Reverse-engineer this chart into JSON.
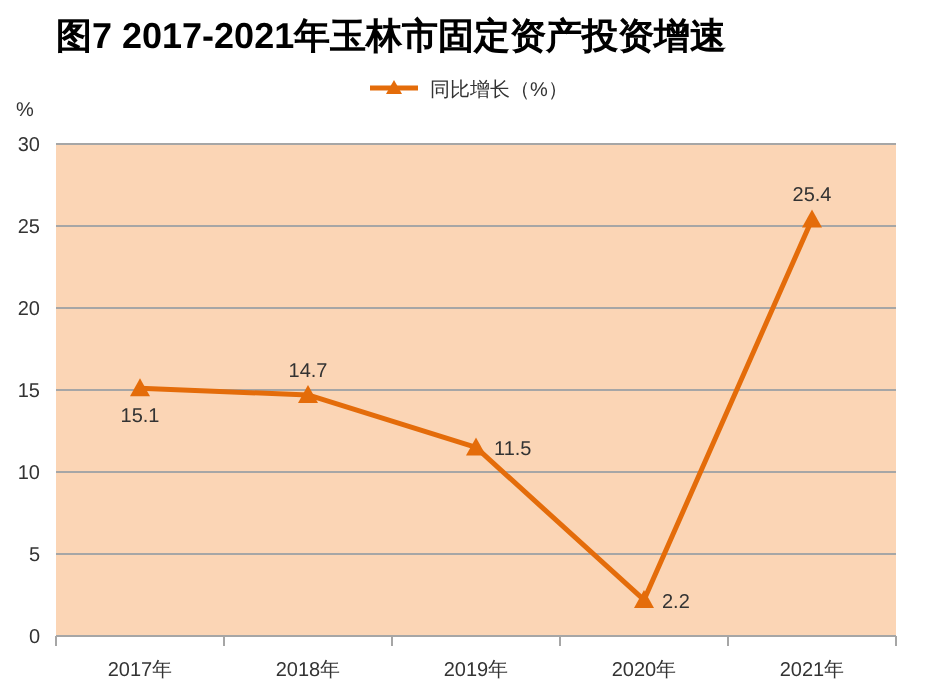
{
  "chart_data": {
    "type": "line",
    "title": "图7    2017-2021年玉林市固定资产投资增速",
    "ylabel": "%",
    "categories": [
      "2017年",
      "2018年",
      "2019年",
      "2020年",
      "2021年"
    ],
    "series": [
      {
        "name": "同比增长（%）",
        "color": "#e46c0a",
        "values": [
          15.1,
          14.7,
          11.5,
          2.2,
          25.4
        ]
      }
    ],
    "ylim": [
      0,
      30
    ],
    "yticks": [
      0,
      5,
      10,
      15,
      20,
      25,
      30
    ],
    "grid": "y",
    "legend": "top",
    "marker": "triangle",
    "line_style": "solid",
    "data_labels": true
  }
}
